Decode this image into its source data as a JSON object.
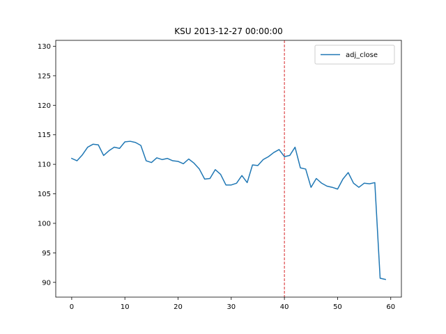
{
  "chart_data": {
    "type": "line",
    "title": "KSU 2013-12-27 00:00:00",
    "xlabel": "",
    "ylabel": "",
    "xlim": [
      -3,
      62
    ],
    "ylim": [
      87.5,
      131
    ],
    "xticks": [
      0,
      10,
      20,
      30,
      40,
      50,
      60
    ],
    "yticks": [
      90,
      95,
      100,
      105,
      110,
      115,
      120,
      125,
      130
    ],
    "grid": false,
    "legend_placement": "top-right",
    "vline": {
      "x": 40,
      "color": "#d62728",
      "style": "dashed"
    },
    "series": [
      {
        "name": "adj_close",
        "color": "#1f77b4",
        "x": [
          0,
          1,
          2,
          3,
          4,
          5,
          6,
          7,
          8,
          9,
          10,
          11,
          12,
          13,
          14,
          15,
          16,
          17,
          18,
          19,
          20,
          21,
          22,
          23,
          24,
          25,
          26,
          27,
          28,
          29,
          30,
          31,
          32,
          33,
          34,
          35,
          36,
          37,
          38,
          39,
          40,
          41,
          42,
          43,
          44,
          45,
          46,
          47,
          48,
          49,
          50,
          51,
          52,
          53,
          54,
          55,
          56,
          57,
          58,
          59
        ],
        "values": [
          111.0,
          110.6,
          111.6,
          112.9,
          113.4,
          113.3,
          111.5,
          112.3,
          112.9,
          112.7,
          113.8,
          113.9,
          113.7,
          113.2,
          110.6,
          110.3,
          111.1,
          110.8,
          111.0,
          110.6,
          110.5,
          110.1,
          110.9,
          110.2,
          109.2,
          107.5,
          107.6,
          109.1,
          108.3,
          106.5,
          106.5,
          106.8,
          108.1,
          106.9,
          109.9,
          109.8,
          110.8,
          111.3,
          112.0,
          112.5,
          111.3,
          111.5,
          112.9,
          109.4,
          109.2,
          106.1,
          107.6,
          106.8,
          106.3,
          106.1,
          105.8,
          107.5,
          108.6,
          106.8,
          106.1,
          106.8,
          106.7,
          106.9,
          90.7,
          90.5
        ]
      }
    ]
  }
}
